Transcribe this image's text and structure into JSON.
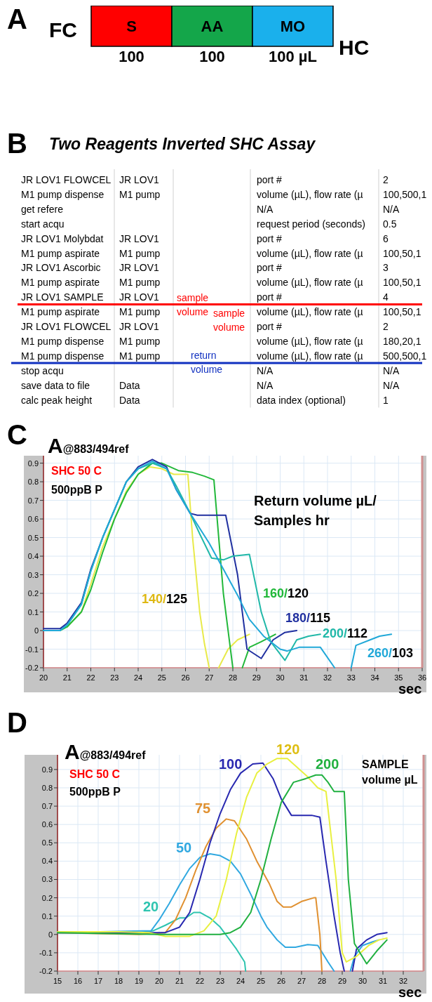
{
  "chart_data": [
    {
      "type": "bar",
      "title": "A",
      "orientation": "horizontal",
      "stacked": true,
      "categories": [
        null
      ],
      "annotations": [
        "FC",
        "HC"
      ],
      "series": [
        {
          "name": "S",
          "color": "#ff0000",
          "values": [
            100
          ],
          "value_labels": [
            "100"
          ]
        },
        {
          "name": "AA",
          "color": "#14a64a",
          "values": [
            100
          ],
          "value_labels": [
            "100"
          ]
        },
        {
          "name": "MO",
          "color": "#1ab0ec",
          "values": [
            100
          ],
          "value_labels": [
            "100 µL"
          ]
        }
      ]
    },
    {
      "type": "other",
      "title": "B",
      "subtitle": "Two Reagents Inverted  SHC Assay",
      "annotations": [
        "JR LOV1 FLOWCEL",
        "JR LOV1",
        "port #",
        "2",
        "M1 pump dispense",
        "M1 pump",
        "volume (µL), flow rate (µ",
        "100,500,1",
        "get refere",
        null,
        "N/A",
        "N/A",
        "start acqu",
        null,
        "request period (seconds)",
        "0.5",
        "JR LOV1 Molybdat",
        "JR LOV1",
        "port #",
        "6",
        "M1 pump aspirate",
        "M1 pump",
        "volume (µL), flow rate (µ",
        "100,50,1",
        "JR LOV1 Ascorbic",
        "JR LOV1",
        "port #",
        "3",
        "M1 pump aspirate",
        "M1 pump",
        "volume (µL), flow rate (µ",
        "100,50,1",
        "JR LOV1 SAMPLE",
        "JR LOV1",
        "port #",
        "4",
        "M1 pump aspirate",
        "M1 pump",
        "volume (µL), flow rate (µ",
        "100,50,1",
        "JR LOV1 FLOWCEL",
        "JR LOV1",
        "port #",
        "2",
        "M1 pump dispense",
        "M1 pump",
        "volume (µL), flow rate (µ",
        "180,20,1",
        "M1 pump dispense",
        "M1 pump",
        "volume (µL), flow rate (µ",
        "500,500,1",
        "stop acqu",
        null,
        "N/A",
        "N/A",
        "save data to file",
        "Data",
        "N/A",
        "N/A",
        "calc peak height",
        "Data",
        "data index (optional)",
        "1",
        "sample\nvolume",
        "sample\nvolume",
        "return\nvolume"
      ]
    },
    {
      "type": "line",
      "title": "C",
      "ylabel": "A@883/494ref",
      "xlabel": "sec",
      "xlim": [
        20,
        36
      ],
      "ylim": [
        -0.2,
        0.94
      ],
      "xticks": [
        20,
        21,
        22,
        23,
        24,
        25,
        26,
        27,
        28,
        29,
        30,
        31,
        32,
        33,
        34,
        35,
        36
      ],
      "yticks": [
        -0.2,
        -0.1,
        0,
        0.1,
        0.2,
        0.3,
        0.4,
        0.5,
        0.6,
        0.7,
        0.8,
        0.9
      ],
      "grid": true,
      "annotations": [
        "SHC 50 C",
        "500ppB P",
        "Return volume µL/\nSamples hr"
      ],
      "series": [
        {
          "name": "140/125",
          "color": "#e8ea4a",
          "x": [
            21,
            21.6,
            22,
            22.5,
            23,
            23.5,
            24,
            24.5,
            25,
            25.5,
            26.1,
            26.3,
            26.6,
            26.8,
            27,
            27.2,
            27.4,
            27.8,
            28.2,
            28.7
          ],
          "values": [
            0.02,
            0.1,
            0.25,
            0.45,
            0.6,
            0.75,
            0.84,
            0.88,
            0.87,
            0.84,
            0.84,
            0.5,
            0.1,
            -0.07,
            -0.2,
            null,
            -0.2,
            -0.1,
            -0.05,
            -0.02
          ]
        },
        {
          "name": "160/120",
          "color": "#22b83a",
          "x": [
            20,
            20.7,
            21,
            21.6,
            22,
            22.5,
            23,
            23.5,
            24,
            24.6,
            25,
            25.7,
            26.3,
            26.8,
            27.2,
            27.6,
            27.9,
            28,
            28.2,
            28.4,
            28.7,
            29.2,
            29.8
          ],
          "values": [
            0,
            0,
            0.02,
            0.1,
            0.22,
            0.42,
            0.6,
            0.74,
            0.84,
            0.9,
            0.9,
            0.86,
            0.85,
            0.83,
            0.81,
            0.2,
            -0.1,
            -0.2,
            null,
            -0.2,
            -0.09,
            -0.06,
            -0.02
          ]
        },
        {
          "name": "180/115",
          "color": "#2030a0",
          "x": [
            20,
            20.7,
            21,
            21.6,
            22,
            22.5,
            23,
            23.5,
            24,
            24.6,
            25.2,
            25.6,
            26.2,
            26.5,
            27,
            27.7,
            28.2,
            28.6,
            29.2,
            29.7,
            30.2,
            30.7
          ],
          "values": [
            0.01,
            0.01,
            0.04,
            0.15,
            0.33,
            0.5,
            0.65,
            0.8,
            0.88,
            0.92,
            0.88,
            0.76,
            0.63,
            0.62,
            0.62,
            0.62,
            0.3,
            -0.1,
            -0.15,
            -0.05,
            -0.01,
            0
          ]
        },
        {
          "name": "200/112",
          "color": "#20b8a8",
          "x": [
            20,
            20.7,
            21,
            21.6,
            22,
            22.5,
            23,
            23.5,
            24,
            24.6,
            25.2,
            25.6,
            26.2,
            26.6,
            27.1,
            27.6,
            28,
            28.7,
            29.2,
            29.6,
            30.2,
            30.7,
            31.2,
            31.7
          ],
          "values": [
            0,
            0,
            0.03,
            0.14,
            0.32,
            0.5,
            0.65,
            0.8,
            0.87,
            0.9,
            0.87,
            0.78,
            0.63,
            0.52,
            0.39,
            0.38,
            0.4,
            0.41,
            0.1,
            -0.06,
            -0.16,
            -0.05,
            -0.03,
            -0.02
          ]
        },
        {
          "name": "260/103",
          "color": "#20a8d8",
          "x": [
            20,
            20.7,
            21,
            21.6,
            22,
            22.5,
            23,
            23.5,
            24,
            24.6,
            25.2,
            25.6,
            26.2,
            27,
            27.6,
            28.2,
            28.7,
            29.3,
            30,
            30.3,
            30.8,
            31.7,
            32.3,
            32.6,
            33,
            33.2,
            33.8,
            34.2,
            34.7
          ],
          "values": [
            0,
            0,
            0.03,
            0.14,
            0.32,
            0.5,
            0.65,
            0.8,
            0.87,
            0.91,
            0.87,
            0.76,
            0.63,
            0.47,
            0.33,
            0.19,
            0.06,
            -0.03,
            -0.1,
            -0.11,
            -0.09,
            -0.09,
            -0.2,
            null,
            -0.2,
            -0.08,
            -0.05,
            -0.03,
            -0.02
          ]
        }
      ]
    },
    {
      "type": "line",
      "title": "D",
      "ylabel": "A@883/494ref",
      "xlabel": "sec",
      "xlim": [
        15,
        33
      ],
      "ylim": [
        -0.2,
        0.98
      ],
      "xticks": [
        15,
        16,
        17,
        18,
        19,
        20,
        21,
        22,
        23,
        24,
        25,
        26,
        27,
        28,
        29,
        30,
        31,
        32
      ],
      "yticks": [
        -0.2,
        -0.1,
        0,
        0.1,
        0.2,
        0.3,
        0.4,
        0.5,
        0.6,
        0.7,
        0.8,
        0.9
      ],
      "grid": true,
      "annotations": [
        "SHC 50 C",
        "500ppB P",
        "SAMPLE\nvolume µL"
      ],
      "series": [
        {
          "name": "20",
          "color": "#2ec4b0",
          "x": [
            15,
            19,
            19.7,
            20.3,
            21,
            21.3,
            21.7,
            22,
            22.5,
            23,
            23.4,
            23.8,
            24.2,
            24.25
          ],
          "values": [
            0.01,
            0.01,
            0.02,
            0.05,
            0.09,
            0.09,
            0.12,
            0.12,
            0.09,
            0.04,
            -0.02,
            -0.08,
            -0.15,
            -0.2
          ]
        },
        {
          "name": "50",
          "color": "#30a8e0",
          "x": [
            15,
            19.6,
            20,
            20.5,
            21,
            21.5,
            22,
            22.5,
            23,
            23.5,
            24,
            24.5,
            25,
            25.3,
            25.8,
            26.2,
            26.7,
            27.3,
            27.8,
            28.3,
            28.6,
            29,
            29.4,
            29.6,
            30,
            30.5,
            30.8
          ],
          "values": [
            0.01,
            0.02,
            0.08,
            0.17,
            0.27,
            0.36,
            0.42,
            0.44,
            0.43,
            0.4,
            0.33,
            0.22,
            0.1,
            0.04,
            -0.03,
            -0.07,
            -0.07,
            -0.055,
            -0.06,
            -0.15,
            -0.2,
            null,
            -0.2,
            -0.12,
            -0.06,
            -0.04,
            -0.03
          ]
        },
        {
          "name": "75",
          "color": "#e09030",
          "x": [
            15,
            19,
            20.3,
            20.8,
            21.3,
            21.8,
            22.3,
            22.8,
            23.3,
            23.7,
            24.3,
            24.8,
            25.4,
            25.8,
            26.1,
            26.5,
            27,
            27.6,
            27.7,
            27.9,
            28
          ],
          "values": [
            0.01,
            0,
            0.01,
            0.08,
            0.2,
            0.35,
            0.48,
            0.58,
            0.63,
            0.62,
            0.52,
            0.4,
            0.28,
            0.18,
            0.15,
            0.15,
            0.18,
            0.2,
            0.2,
            0,
            -0.2
          ]
        },
        {
          "name": "100",
          "color": "#2828b0",
          "x": [
            15,
            20.3,
            21,
            21.5,
            22,
            22.5,
            23,
            23.5,
            24,
            24.6,
            25.1,
            25.6,
            26,
            26.5,
            27,
            27.5,
            27.9,
            28.2,
            28.6,
            28.9,
            29.1,
            29.3,
            29.5,
            29.7,
            30.2,
            30.7,
            31.2
          ],
          "values": [
            0.01,
            0.01,
            0.04,
            0.12,
            0.3,
            0.5,
            0.66,
            0.79,
            0.88,
            0.93,
            0.935,
            0.85,
            0.74,
            0.65,
            0.65,
            0.65,
            0.64,
            0.4,
            0.1,
            -0.1,
            -0.2,
            null,
            -0.2,
            -0.08,
            -0.03,
            0,
            0.01
          ]
        },
        {
          "name": "120",
          "color": "#e8f040",
          "x": [
            15,
            18,
            19.5,
            20.3,
            21.5,
            22.2,
            22.8,
            23.3,
            23.8,
            24.3,
            24.8,
            25.3,
            25.8,
            26.3,
            26.8,
            27.3,
            27.8,
            28.2,
            28.7,
            29,
            29.2,
            29.7,
            30.3,
            30.8,
            31.2
          ],
          "values": [
            0.015,
            0.015,
            0.01,
            -0.01,
            -0.01,
            0.02,
            0.1,
            0.3,
            0.55,
            0.75,
            0.88,
            0.93,
            0.96,
            0.96,
            0.91,
            0.86,
            0.8,
            0.78,
            0.3,
            -0.1,
            -0.15,
            -0.12,
            -0.06,
            -0.03,
            -0.02
          ]
        },
        {
          "name": "200",
          "color": "#20b040",
          "x": [
            15,
            20,
            23,
            23.5,
            24,
            24.5,
            25,
            25.5,
            26,
            26.6,
            27.2,
            27.7,
            28,
            28.3,
            28.6,
            29.1,
            29.3,
            29.6,
            30.2,
            30.7,
            31.2
          ],
          "values": [
            0.01,
            0,
            0,
            0.01,
            0.04,
            0.12,
            0.3,
            0.52,
            0.72,
            0.83,
            0.85,
            0.87,
            0.87,
            0.83,
            0.78,
            0.78,
            0.3,
            -0.05,
            -0.16,
            -0.09,
            -0.03
          ]
        }
      ]
    }
  ]
}
